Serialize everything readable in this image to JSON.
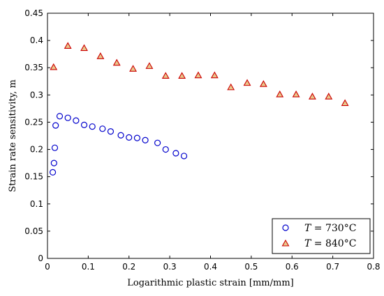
{
  "chart_data": {
    "type": "scatter",
    "title": "",
    "xlabel": "Logarithmic plastic strain [mm/mm]",
    "ylabel": "Strain rate sensitivity, m",
    "xlim": [
      0,
      0.8
    ],
    "ylim": [
      0,
      0.45
    ],
    "xticks": [
      "0",
      "0.1",
      "0.2",
      "0.3",
      "0.4",
      "0.5",
      "0.6",
      "0.7",
      "0.8"
    ],
    "yticks": [
      "0",
      "0.05",
      "0.1",
      "0.15",
      "0.2",
      "0.25",
      "0.3",
      "0.35",
      "0.4",
      "0.45"
    ],
    "grid": false,
    "legend_position": "bottom-right",
    "series": [
      {
        "name": "T = 730°C",
        "marker": "circle",
        "color": "#0000cc",
        "points": [
          [
            0.013,
            0.158
          ],
          [
            0.016,
            0.175
          ],
          [
            0.018,
            0.203
          ],
          [
            0.02,
            0.244
          ],
          [
            0.03,
            0.261
          ],
          [
            0.05,
            0.258
          ],
          [
            0.07,
            0.253
          ],
          [
            0.09,
            0.245
          ],
          [
            0.11,
            0.242
          ],
          [
            0.135,
            0.238
          ],
          [
            0.155,
            0.233
          ],
          [
            0.18,
            0.226
          ],
          [
            0.2,
            0.222
          ],
          [
            0.22,
            0.221
          ],
          [
            0.24,
            0.217
          ],
          [
            0.27,
            0.212
          ],
          [
            0.29,
            0.2
          ],
          [
            0.315,
            0.193
          ],
          [
            0.335,
            0.188
          ]
        ]
      },
      {
        "name": "T = 840°C",
        "marker": "triangle",
        "color": "#cc0000",
        "fill": "#e8c88c",
        "points": [
          [
            0.015,
            0.351
          ],
          [
            0.05,
            0.39
          ],
          [
            0.09,
            0.386
          ],
          [
            0.13,
            0.371
          ],
          [
            0.17,
            0.359
          ],
          [
            0.21,
            0.348
          ],
          [
            0.25,
            0.353
          ],
          [
            0.29,
            0.335
          ],
          [
            0.33,
            0.335
          ],
          [
            0.37,
            0.336
          ],
          [
            0.41,
            0.336
          ],
          [
            0.45,
            0.314
          ],
          [
            0.49,
            0.322
          ],
          [
            0.53,
            0.32
          ],
          [
            0.57,
            0.301
          ],
          [
            0.61,
            0.301
          ],
          [
            0.65,
            0.297
          ],
          [
            0.69,
            0.297
          ],
          [
            0.73,
            0.285
          ]
        ]
      }
    ]
  },
  "legend": {
    "items": [
      {
        "symbol": "T",
        "value": "= 730°C"
      },
      {
        "symbol": "T",
        "value": "= 840°C"
      }
    ]
  }
}
